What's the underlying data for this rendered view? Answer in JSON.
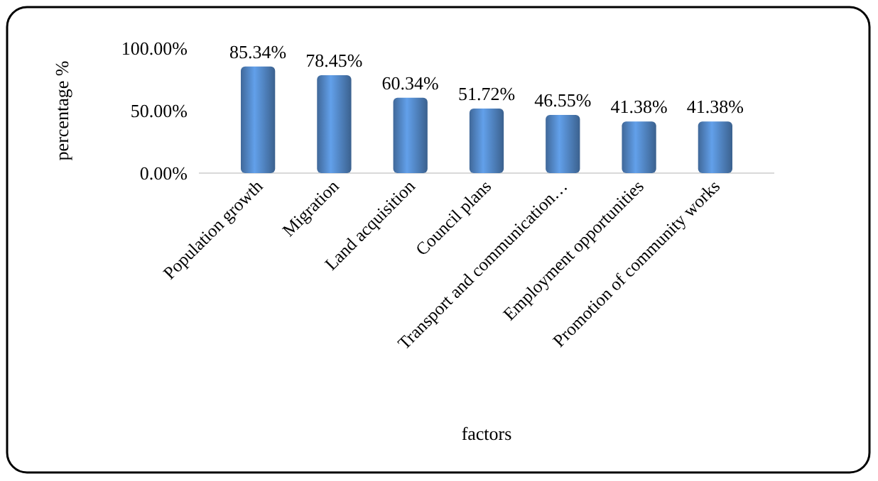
{
  "chart_data": {
    "type": "bar",
    "xlabel": "factors",
    "ylabel": "percentage %",
    "categories": [
      "Population growth",
      "Migration",
      "Land acquisition",
      "Council plans",
      "Transport and communication…",
      "Employment opportunities",
      "Promotion of community works"
    ],
    "values": [
      85.34,
      78.45,
      60.34,
      51.72,
      46.55,
      41.38,
      41.38
    ],
    "value_labels": [
      "85.34%",
      "78.45%",
      "60.34%",
      "51.72%",
      "46.55%",
      "41.38%",
      "41.38%"
    ],
    "color": "#4f81bd",
    "ylim": [
      0,
      100
    ],
    "yticks": [
      {
        "value": 0,
        "label": "0.00%"
      },
      {
        "value": 50,
        "label": "50.00%"
      },
      {
        "value": 100,
        "label": "100.00%"
      }
    ],
    "grid": false
  }
}
